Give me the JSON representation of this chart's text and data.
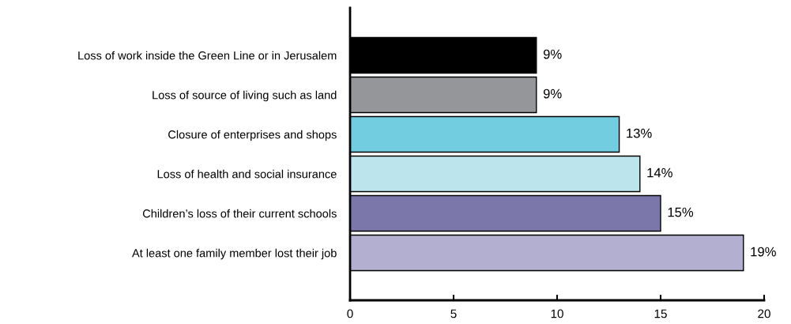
{
  "chart_data": {
    "type": "bar",
    "orientation": "horizontal",
    "categories": [
      "Loss of work inside the Green Line or in Jerusalem",
      "Loss of source of living such as land",
      "Closure of enterprises and shops",
      "Loss of health and social insurance",
      "Children’s loss of their current schools",
      "At least one family member lost their job"
    ],
    "values": [
      9,
      9,
      13,
      14,
      15,
      19
    ],
    "colors": [
      "#000000",
      "#959699",
      "#72cde0",
      "#bce4ed",
      "#7b77ab",
      "#b2afd0"
    ],
    "value_labels": [
      "9%",
      "9%",
      "13%",
      "14%",
      "15%",
      "19%"
    ],
    "xlim": [
      0,
      20
    ],
    "xticks": [
      0,
      5,
      10,
      15,
      20
    ]
  }
}
